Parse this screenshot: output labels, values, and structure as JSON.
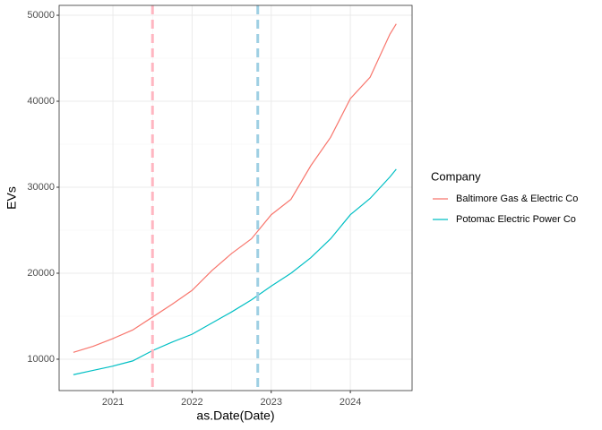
{
  "chart_data": {
    "type": "line",
    "x_label": "as.Date(Date)",
    "y_label": "EVs",
    "legend_title": "Company",
    "x": [
      2020.5,
      2020.75,
      2021,
      2021.25,
      2021.5,
      2021.75,
      2022,
      2022.25,
      2022.5,
      2022.75,
      2023,
      2023.25,
      2023.5,
      2023.75,
      2024,
      2024.25,
      2024.5,
      2024.58
    ],
    "series": [
      {
        "name": "Baltimore Gas & Electric Co",
        "color": "#f8766d",
        "values": [
          10800,
          11500,
          12400,
          13400,
          14900,
          16400,
          18000,
          20300,
          22300,
          24000,
          26800,
          28600,
          32500,
          35800,
          40300,
          42800,
          47800,
          49000
        ]
      },
      {
        "name": "Potomac Electric Power Co",
        "color": "#00bfc4",
        "values": [
          8200,
          8700,
          9200,
          9800,
          11000,
          12000,
          12900,
          14200,
          15500,
          16900,
          18500,
          20000,
          21800,
          24000,
          26800,
          28700,
          31200,
          32100
        ]
      }
    ],
    "vlines": [
      {
        "x": 2021.5,
        "color": "#ffb6c1"
      },
      {
        "x": 2022.83,
        "color": "#9ecfe3"
      }
    ],
    "xlim": [
      2020.32,
      2024.78
    ],
    "xticks": [
      2021,
      2022,
      2023,
      2024
    ],
    "ylim": [
      6350,
      51150
    ],
    "yticks": [
      10000,
      20000,
      30000,
      40000,
      50000
    ],
    "grid": true
  }
}
